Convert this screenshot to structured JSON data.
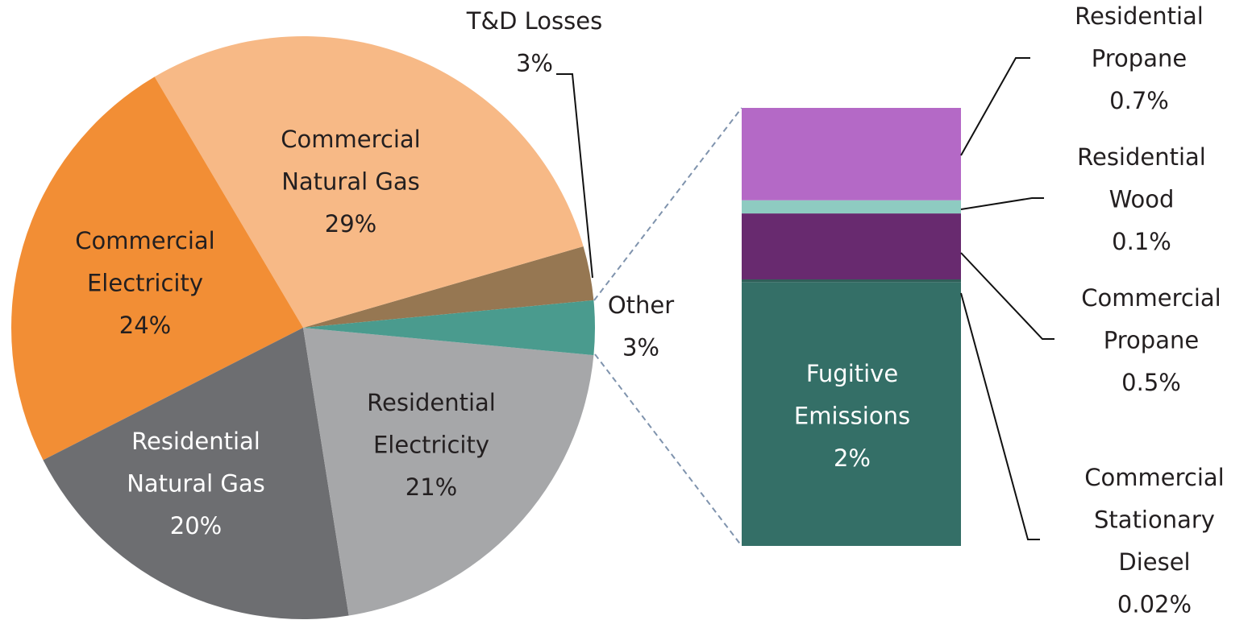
{
  "chart_data": [
    {
      "type": "pie",
      "categories": [
        [
          "Other"
        ],
        [
          "Residential",
          "Electricity"
        ],
        [
          "Residential",
          "Natural Gas"
        ],
        [
          "Commercial",
          "Electricity"
        ],
        [
          "Commercial",
          "Natural Gas"
        ],
        [
          "T&D Losses"
        ]
      ],
      "values": [
        3,
        21,
        20,
        24,
        29,
        3
      ],
      "value_labels": [
        "3%",
        "21%",
        "20%",
        "24%",
        "29%",
        "3%"
      ],
      "colors": [
        "#4a9b8e",
        "#a6a7a9",
        "#6d6e71",
        "#f28e35",
        "#f7b986",
        "#967752"
      ]
    },
    {
      "type": "stacked-bar",
      "categories": [
        [
          "Residential",
          "Propane"
        ],
        [
          "Residential",
          "Wood"
        ],
        [
          "Commercial",
          "Propane"
        ],
        [
          "Commercial",
          "Stationary",
          "Diesel"
        ],
        [
          "Fugitive",
          "Emissions"
        ]
      ],
      "values": [
        0.7,
        0.1,
        0.5,
        0.02,
        2
      ],
      "value_labels": [
        "0.7%",
        "0.1%",
        "0.5%",
        "0.02%",
        "2%"
      ],
      "colors": [
        "#b469c6",
        "#8ecbc1",
        "#682a6f",
        "#2f5f59",
        "#346f67"
      ]
    }
  ]
}
